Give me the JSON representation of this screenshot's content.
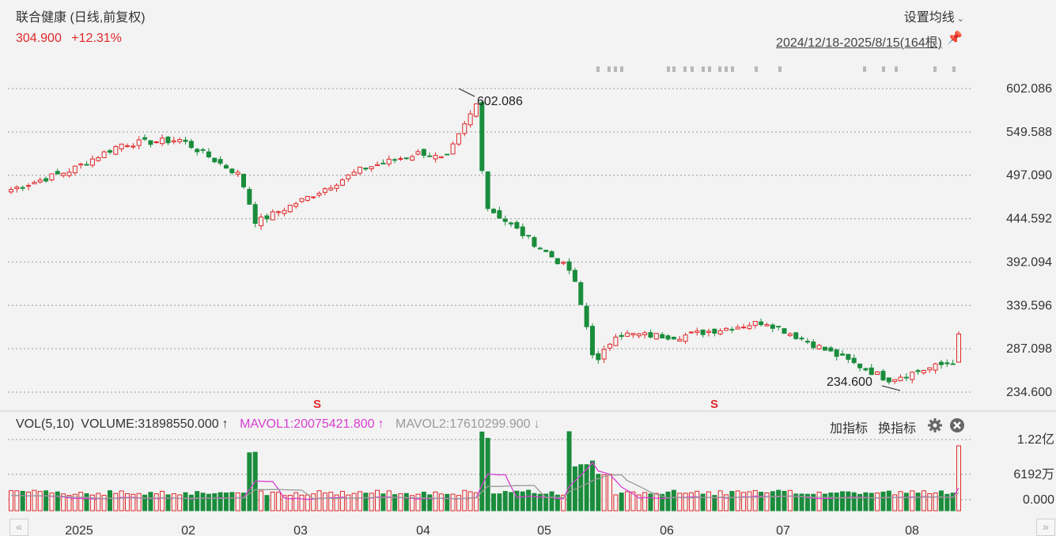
{
  "header": {
    "title": "联合健康 (日线,前复权)",
    "price": "304.900",
    "change": "+12.31%",
    "setting_label": "设置均线",
    "range_label": "2024/12/18-2025/8/15(164根)"
  },
  "colors": {
    "up": "#e0292b",
    "down": "#1a8c3c",
    "mavol1": "#d83fd0",
    "mavol2": "#9a9a9a",
    "grid": "#9a9a9a"
  },
  "chart_data": [
    {
      "type": "candlestick",
      "title": "联合健康 (日线,前复权)",
      "ylim": [
        234.6,
        602.086
      ],
      "y_ticks": [
        "602.086",
        "549.588",
        "497.090",
        "444.592",
        "392.094",
        "339.596",
        "287.098",
        "234.600"
      ],
      "x_ticks": [
        "2025",
        "02",
        "03",
        "04",
        "05",
        "06",
        "07",
        "08"
      ],
      "annotations": {
        "high": "602.086",
        "low": "234.600"
      },
      "grid": true,
      "key_points": [
        {
          "date": "2024-12-18",
          "close": 480
        },
        {
          "date": "2025-01-02",
          "close": 503
        },
        {
          "date": "2025-01-15",
          "close": 535
        },
        {
          "date": "2025-01-30",
          "close": 540
        },
        {
          "date": "2025-02-14",
          "close": 497
        },
        {
          "date": "2025-02-18",
          "close": 440
        },
        {
          "date": "2025-03-03",
          "close": 470
        },
        {
          "date": "2025-03-17",
          "close": 505
        },
        {
          "date": "2025-04-01",
          "close": 525
        },
        {
          "date": "2025-04-07",
          "close": 515
        },
        {
          "date": "2025-04-15",
          "close": 585
        },
        {
          "date": "2025-04-17",
          "close": 461
        },
        {
          "date": "2025-05-09",
          "close": 380
        },
        {
          "date": "2025-05-13",
          "close": 310
        },
        {
          "date": "2025-05-15",
          "close": 266
        },
        {
          "date": "2025-05-20",
          "close": 305
        },
        {
          "date": "2025-06-05",
          "close": 302
        },
        {
          "date": "2025-06-27",
          "close": 320
        },
        {
          "date": "2025-07-28",
          "close": 250
        },
        {
          "date": "2025-08-14",
          "close": 272
        },
        {
          "date": "2025-08-15",
          "close": 304.9
        }
      ]
    },
    {
      "type": "bar",
      "title": "VOL(5,10)",
      "y_ticks": [
        "1.22亿",
        "6192万",
        "0.000"
      ],
      "series": [
        {
          "name": "VOLUME",
          "value": "31898550.000",
          "arrow": "↑"
        },
        {
          "name": "MAVOL1",
          "value": "20075421.800",
          "arrow": "↑"
        },
        {
          "name": "MAVOL2",
          "value": "17610299.900",
          "arrow": "↓"
        }
      ]
    }
  ],
  "volume_panel": {
    "label": "VOL(5,10)",
    "volume_text": "VOLUME:31898550.000",
    "volume_arrow": "↑",
    "mavol1_text": "MAVOL1:20075421.800",
    "mavol1_arrow": "↑",
    "mavol2_text": "MAVOL2:17610299.900",
    "mavol2_arrow": "↓",
    "add_indicator": "加指标",
    "switch_indicator": "换指标"
  },
  "markers": {
    "s_label": "S"
  },
  "scroll": {
    "left": "«",
    "right": "»"
  }
}
